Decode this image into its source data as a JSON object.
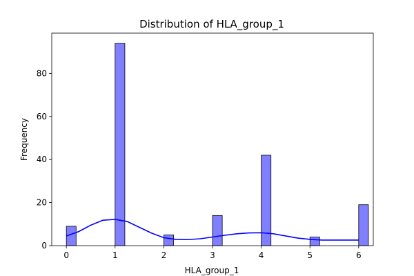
{
  "chart_data": {
    "type": "bar",
    "title": "Distribution of HLA_group_1",
    "xlabel": "HLA_group_1",
    "ylabel": "Frequency",
    "xlim": [
      -0.3,
      6.3
    ],
    "ylim": [
      0,
      98.7
    ],
    "x_ticks": [
      0,
      1,
      2,
      3,
      4,
      5,
      6
    ],
    "y_ticks": [
      0,
      20,
      40,
      60,
      80
    ],
    "bin_width": 0.2,
    "bins": [
      {
        "x": 0,
        "count": 9
      },
      {
        "x": 1,
        "count": 94
      },
      {
        "x": 2,
        "count": 5
      },
      {
        "x": 3,
        "count": 14
      },
      {
        "x": 4,
        "count": 42
      },
      {
        "x": 5,
        "count": 4
      },
      {
        "x": 6,
        "count": 19
      }
    ],
    "kde": {
      "x": [
        0,
        0.25,
        0.5,
        0.75,
        1.0,
        1.25,
        1.5,
        1.75,
        2.0,
        2.25,
        2.5,
        2.75,
        3.0,
        3.25,
        3.5,
        3.75,
        4.0,
        4.25,
        4.5,
        4.75,
        5.0,
        5.25,
        5.5,
        5.75,
        6.0
      ],
      "y": [
        4.5,
        6.5,
        9.5,
        11.8,
        12.2,
        11.2,
        8.5,
        5.8,
        3.7,
        2.9,
        2.8,
        3.2,
        4.0,
        4.8,
        5.5,
        5.9,
        6.0,
        5.5,
        4.5,
        3.5,
        2.9,
        2.6,
        2.6,
        2.6,
        2.6
      ]
    },
    "series_color": "#7f7fff",
    "kde_color": "#0000ff",
    "grid": false,
    "legend": false
  }
}
